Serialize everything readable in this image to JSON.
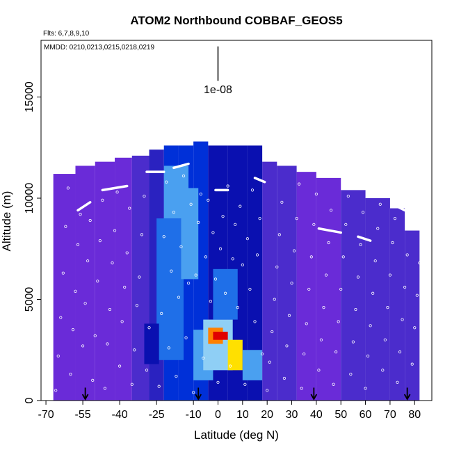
{
  "chart_data": {
    "type": "heatmap",
    "title": "ATOM2 Northbound COBBAF_GEOS5",
    "subtitle_flights": "Flts: 6,7,8,9,10",
    "subtitle_dates": "MMDD: 0210,0213,0215,0218,0219",
    "xlabel": "Latitude (deg N)",
    "ylabel": "Altitude (m)",
    "xlim": [
      -72,
      87
    ],
    "ylim": [
      0,
      17800
    ],
    "x_ticks": [
      -70,
      -55,
      -40,
      -25,
      -10,
      0,
      10,
      20,
      30,
      40,
      50,
      60,
      70,
      80
    ],
    "x_tick_labels": [
      "-70",
      "-55",
      "-40",
      "-25",
      "-10",
      "0",
      "10",
      "20",
      "30",
      "40",
      "50",
      "60",
      "70",
      "80"
    ],
    "y_ticks": [
      0,
      5000,
      10000,
      15000
    ],
    "y_tick_labels": [
      "0",
      "5000",
      "10000",
      "15000"
    ],
    "scale_bar_label": "1e-08",
    "scale_bar": {
      "lat": 0,
      "alt_top": 17500,
      "alt_bottom": 15800
    },
    "grid": false,
    "colormap": [
      "#8a2be2",
      "#6a2bd8",
      "#4b2ccc",
      "#2a22c0",
      "#0a10b0",
      "#0030d8",
      "#1f6fe8",
      "#4aa0f0",
      "#8fcff5",
      "#e8e0a0",
      "#ffe000",
      "#ff8000",
      "#e00000"
    ],
    "heat_cells": [
      {
        "lat": [
          -67,
          -58
        ],
        "alt": [
          0,
          11200
        ],
        "level": 0.05
      },
      {
        "lat": [
          -58,
          -50
        ],
        "alt": [
          0,
          11600
        ],
        "level": 0.05
      },
      {
        "lat": [
          -50,
          -42
        ],
        "alt": [
          0,
          11800
        ],
        "level": 0.08
      },
      {
        "lat": [
          -42,
          -35
        ],
        "alt": [
          0,
          12000
        ],
        "level": 0.12
      },
      {
        "lat": [
          -35,
          -28
        ],
        "alt": [
          0,
          12100
        ],
        "level": 0.18
      },
      {
        "lat": [
          -28,
          -22
        ],
        "alt": [
          0,
          12400
        ],
        "level": 0.28
      },
      {
        "lat": [
          -22,
          -16
        ],
        "alt": [
          0,
          12600
        ],
        "level": 0.38
      },
      {
        "lat": [
          -16,
          -10
        ],
        "alt": [
          0,
          12600
        ],
        "level": 0.42
      },
      {
        "lat": [
          -10,
          -4
        ],
        "alt": [
          0,
          12800
        ],
        "level": 0.4
      },
      {
        "lat": [
          -4,
          4
        ],
        "alt": [
          0,
          12600
        ],
        "level": 0.36
      },
      {
        "lat": [
          4,
          12
        ],
        "alt": [
          0,
          12600
        ],
        "level": 0.34
      },
      {
        "lat": [
          12,
          18
        ],
        "alt": [
          0,
          12600
        ],
        "level": 0.3
      },
      {
        "lat": [
          18,
          24
        ],
        "alt": [
          0,
          11800
        ],
        "level": 0.2
      },
      {
        "lat": [
          24,
          32
        ],
        "alt": [
          0,
          11600
        ],
        "level": 0.14
      },
      {
        "lat": [
          32,
          40
        ],
        "alt": [
          0,
          11300
        ],
        "level": 0.12
      },
      {
        "lat": [
          40,
          50
        ],
        "alt": [
          0,
          11000
        ],
        "level": 0.12
      },
      {
        "lat": [
          50,
          60
        ],
        "alt": [
          0,
          10400
        ],
        "level": 0.13
      },
      {
        "lat": [
          60,
          70
        ],
        "alt": [
          0,
          10000
        ],
        "level": 0.14
      },
      {
        "lat": [
          70,
          76
        ],
        "alt": [
          0,
          9500
        ],
        "level": 0.14
      },
      {
        "lat": [
          76,
          82
        ],
        "alt": [
          0,
          8400
        ],
        "level": 0.15
      },
      {
        "lat": [
          -25,
          -14
        ],
        "alt": [
          2000,
          9000
        ],
        "level": 0.5
      },
      {
        "lat": [
          -22,
          -12
        ],
        "alt": [
          9000,
          11600
        ],
        "level": 0.55
      },
      {
        "lat": [
          -15,
          -8
        ],
        "alt": [
          6000,
          10500
        ],
        "level": 0.58
      },
      {
        "lat": [
          -10,
          -2
        ],
        "alt": [
          1000,
          3500
        ],
        "level": 0.55
      },
      {
        "lat": [
          -6,
          6
        ],
        "alt": [
          1500,
          4000
        ],
        "level": 0.7
      },
      {
        "lat": [
          -4,
          2
        ],
        "alt": [
          2800,
          3600
        ],
        "level": 0.9
      },
      {
        "lat": [
          -2,
          4
        ],
        "alt": [
          3000,
          3400
        ],
        "level": 1.0
      },
      {
        "lat": [
          4,
          10
        ],
        "alt": [
          1500,
          3000
        ],
        "level": 0.82
      },
      {
        "lat": [
          10,
          18
        ],
        "alt": [
          1000,
          2500
        ],
        "level": 0.62
      },
      {
        "lat": [
          -30,
          -24
        ],
        "alt": [
          1800,
          3800
        ],
        "level": 0.32
      },
      {
        "lat": [
          -2,
          8
        ],
        "alt": [
          4000,
          6500
        ],
        "level": 0.46
      }
    ],
    "arrow_latitudes": [
      -54,
      -8,
      39,
      77
    ],
    "arrow_alt_top": 500,
    "tropopause_segments": [
      [
        [
          -57,
          9400
        ],
        [
          -52,
          9800
        ]
      ],
      [
        [
          -47,
          10400
        ],
        [
          -37,
          10600
        ]
      ],
      [
        [
          -29,
          11300
        ],
        [
          -22,
          11300
        ]
      ],
      [
        [
          -18,
          11500
        ],
        [
          -12,
          11700
        ]
      ],
      [
        [
          -1,
          10400
        ],
        [
          4,
          10400
        ]
      ],
      [
        [
          15,
          11000
        ],
        [
          19,
          10800
        ]
      ],
      [
        [
          25,
          11700
        ],
        [
          35,
          11700
        ]
      ],
      [
        [
          41,
          8500
        ],
        [
          50,
          8300
        ]
      ],
      [
        [
          57,
          8100
        ],
        [
          62,
          7900
        ]
      ],
      [
        [
          71,
          9700
        ],
        [
          76,
          9400
        ]
      ]
    ],
    "points": [
      [
        -66,
        500
      ],
      [
        -65,
        2200
      ],
      [
        -64,
        4100
      ],
      [
        -63,
        6300
      ],
      [
        -62,
        8600
      ],
      [
        -61,
        10500
      ],
      [
        -60,
        1300
      ],
      [
        -59,
        3500
      ],
      [
        -58,
        5400
      ],
      [
        -57,
        7700
      ],
      [
        -56,
        9200
      ],
      [
        -55,
        2700
      ],
      [
        -54,
        4800
      ],
      [
        -53,
        6900
      ],
      [
        -52,
        8900
      ],
      [
        -51,
        1000
      ],
      [
        -50,
        3200
      ],
      [
        -49,
        5900
      ],
      [
        -48,
        7900
      ],
      [
        -47,
        9900
      ],
      [
        -46,
        600
      ],
      [
        -45,
        2800
      ],
      [
        -44,
        4500
      ],
      [
        -43,
        6800
      ],
      [
        -42,
        8400
      ],
      [
        -41,
        10300
      ],
      [
        -40,
        1700
      ],
      [
        -39,
        3900
      ],
      [
        -38,
        5600
      ],
      [
        -37,
        7300
      ],
      [
        -36,
        9500
      ],
      [
        -35,
        800
      ],
      [
        -34,
        2500
      ],
      [
        -33,
        4700
      ],
      [
        -32,
        6100
      ],
      [
        -31,
        8200
      ],
      [
        -30,
        10100
      ],
      [
        -29,
        1500
      ],
      [
        -28,
        3600
      ],
      [
        -24,
        700
      ],
      [
        -23,
        4300
      ],
      [
        -22,
        8100
      ],
      [
        -21,
        10800
      ],
      [
        -20,
        2600
      ],
      [
        -19,
        6400
      ],
      [
        -18,
        9300
      ],
      [
        -17,
        1200
      ],
      [
        -16,
        5100
      ],
      [
        -15,
        7600
      ],
      [
        -14,
        11100
      ],
      [
        -13,
        3100
      ],
      [
        -12,
        5800
      ],
      [
        -11,
        9700
      ],
      [
        -10,
        400
      ],
      [
        -9,
        6200
      ],
      [
        -8,
        8800
      ],
      [
        -7,
        10200
      ],
      [
        -6,
        2100
      ],
      [
        -5,
        7100
      ],
      [
        -4,
        9900
      ],
      [
        -3,
        4900
      ],
      [
        -2,
        8300
      ],
      [
        -1,
        6000
      ],
      [
        0,
        900
      ],
      [
        1,
        7500
      ],
      [
        2,
        9100
      ],
      [
        3,
        5300
      ],
      [
        4,
        10600
      ],
      [
        5,
        1700
      ],
      [
        6,
        7000
      ],
      [
        7,
        8700
      ],
      [
        8,
        4600
      ],
      [
        9,
        9600
      ],
      [
        10,
        6700
      ],
      [
        11,
        800
      ],
      [
        12,
        8000
      ],
      [
        13,
        5500
      ],
      [
        14,
        10400
      ],
      [
        15,
        3900
      ],
      [
        16,
        7200
      ],
      [
        17,
        9000
      ],
      [
        18,
        2300
      ],
      [
        20,
        500
      ],
      [
        21,
        1900
      ],
      [
        22,
        3400
      ],
      [
        23,
        5000
      ],
      [
        24,
        6600
      ],
      [
        25,
        8200
      ],
      [
        26,
        9800
      ],
      [
        27,
        1100
      ],
      [
        28,
        2700
      ],
      [
        29,
        4200
      ],
      [
        30,
        5800
      ],
      [
        31,
        7400
      ],
      [
        32,
        9000
      ],
      [
        33,
        10700
      ],
      [
        34,
        600
      ],
      [
        35,
        2300
      ],
      [
        36,
        3800
      ],
      [
        37,
        5500
      ],
      [
        38,
        7100
      ],
      [
        39,
        8700
      ],
      [
        40,
        10200
      ],
      [
        41,
        1500
      ],
      [
        42,
        3000
      ],
      [
        43,
        4600
      ],
      [
        44,
        6200
      ],
      [
        45,
        7800
      ],
      [
        46,
        9400
      ],
      [
        47,
        800
      ],
      [
        48,
        2400
      ],
      [
        49,
        3900
      ],
      [
        50,
        5500
      ],
      [
        51,
        7100
      ],
      [
        52,
        8700
      ],
      [
        53,
        10100
      ],
      [
        54,
        1300
      ],
      [
        55,
        2900
      ],
      [
        56,
        4500
      ],
      [
        57,
        6100
      ],
      [
        58,
        7700
      ],
      [
        59,
        9300
      ],
      [
        60,
        600
      ],
      [
        61,
        2200
      ],
      [
        62,
        3700
      ],
      [
        63,
        5300
      ],
      [
        64,
        6900
      ],
      [
        65,
        8500
      ],
      [
        66,
        9700
      ],
      [
        67,
        1500
      ],
      [
        68,
        3000
      ],
      [
        69,
        4600
      ],
      [
        70,
        6200
      ],
      [
        71,
        7800
      ],
      [
        72,
        9000
      ],
      [
        73,
        900
      ],
      [
        74,
        2400
      ],
      [
        75,
        4000
      ],
      [
        76,
        5600
      ],
      [
        77,
        7200
      ],
      [
        78,
        8600
      ],
      [
        79,
        1800
      ],
      [
        80,
        3600
      ],
      [
        81,
        5200
      ],
      [
        82,
        6800
      ]
    ]
  }
}
